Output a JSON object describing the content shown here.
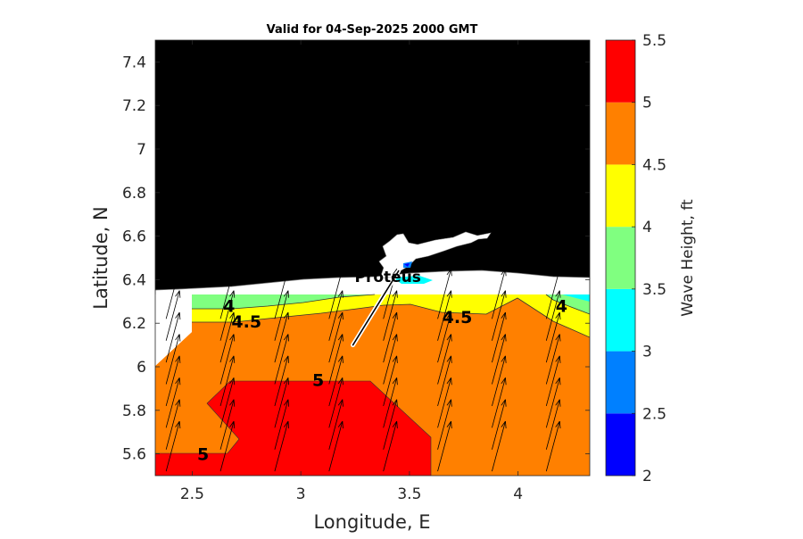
{
  "chart_data": {
    "type": "contour",
    "title": "Valid for 04-Sep-2025 2000 GMT",
    "xlabel": "Longitude, E",
    "ylabel": "Latitude, N",
    "xlim": [
      2.33,
      4.33
    ],
    "ylim": [
      5.5,
      7.5
    ],
    "xticks": [
      2.5,
      3,
      3.5,
      4
    ],
    "xtick_labels": [
      "2.5",
      "3",
      "3.5",
      "4"
    ],
    "yticks": [
      5.6,
      5.8,
      6.0,
      6.2,
      6.4,
      6.6,
      6.8,
      7.0,
      7.2,
      7.4
    ],
    "ytick_labels": [
      "5.6",
      "5.8",
      "6",
      "6.2",
      "6.4",
      "6.6",
      "6.8",
      "7",
      "7.2",
      "7.4"
    ],
    "colorbar": {
      "label": "Wave Height, ft",
      "levels": [
        2,
        2.5,
        3,
        3.5,
        4,
        4.5,
        5,
        5.5
      ],
      "tick_labels": [
        "2",
        "2.5",
        "3",
        "3.5",
        "4",
        "4.5",
        "5",
        "5.5"
      ],
      "colors": [
        "#0000ff",
        "#0080ff",
        "#00ffff",
        "#80ff80",
        "#ffff00",
        "#ff8000",
        "#ff0000"
      ]
    },
    "land_color": "#000000",
    "contour_labels": [
      {
        "text": "4",
        "lon": 2.67,
        "lat": 6.28
      },
      {
        "text": "4.5",
        "lon": 2.75,
        "lat": 6.21
      },
      {
        "text": "4.5",
        "lon": 3.72,
        "lat": 6.23
      },
      {
        "text": "4",
        "lon": 4.2,
        "lat": 6.28
      },
      {
        "text": "5",
        "lon": 3.08,
        "lat": 5.94
      },
      {
        "text": "5",
        "lon": 2.55,
        "lat": 5.6
      }
    ],
    "location_marker": {
      "label": "Proteus",
      "lon": 3.45,
      "lat": 6.43
    },
    "track": [
      [
        3.24,
        6.1
      ],
      [
        3.45,
        6.44
      ]
    ],
    "wave_direction_field": {
      "bearing_deg": 15,
      "lon_spacing": 0.25,
      "lat_spacing": 0.1
    }
  }
}
